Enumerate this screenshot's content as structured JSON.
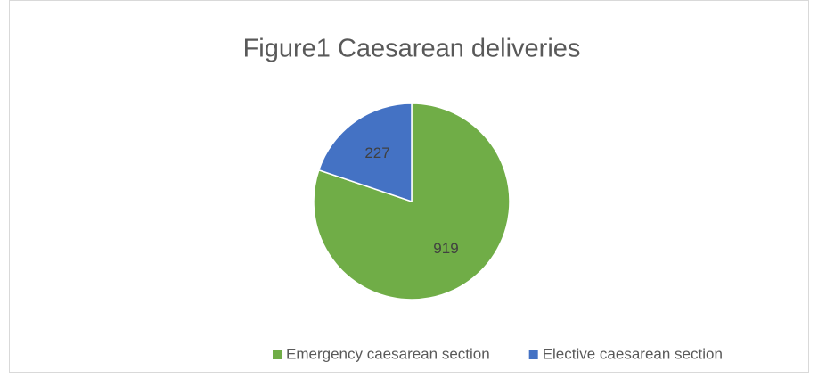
{
  "chart_data": {
    "type": "pie",
    "title": "Figure1 Caesarean deliveries",
    "categories": [
      "Emergency caesarean section",
      "Elective caesarean section"
    ],
    "values": [
      919,
      227
    ],
    "colors": [
      "#70ad47",
      "#4472c4"
    ],
    "legend": "bottom"
  }
}
